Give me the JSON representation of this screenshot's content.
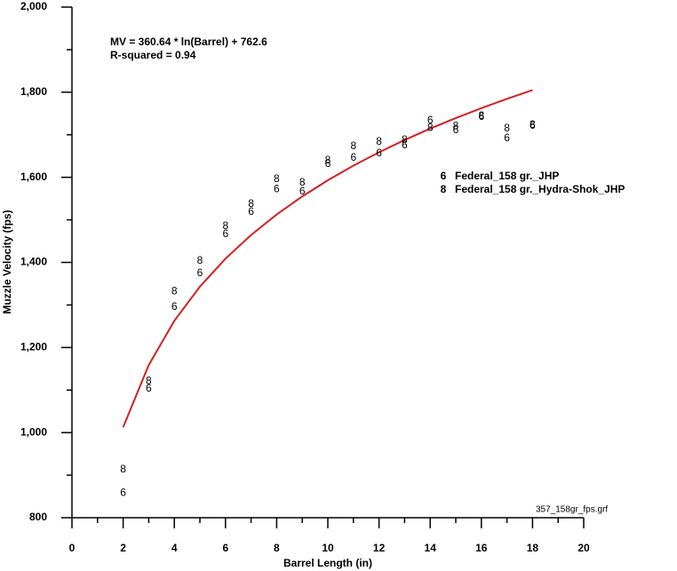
{
  "chart_data": {
    "type": "scatter",
    "xlabel": "Barrel Length (in)",
    "ylabel": "Muzzle Velocity (fps)",
    "annotations": [
      "MV = 360.64 * ln(Barrel) + 762.6",
      "R-squared = 0.94"
    ],
    "footer": "357_158gr_fps.grf",
    "xlim": [
      0,
      20
    ],
    "xticks": [
      0,
      2,
      4,
      6,
      8,
      10,
      12,
      14,
      16,
      18,
      20
    ],
    "x_minor_ticks": [
      1,
      3,
      5,
      7,
      9,
      11,
      13,
      15,
      17,
      19
    ],
    "ylim": [
      800,
      2000
    ],
    "yticks": [
      {
        "value": 800,
        "label": "800"
      },
      {
        "value": 1000,
        "label": "1,000"
      },
      {
        "value": 1200,
        "label": "1,200"
      },
      {
        "value": 1400,
        "label": "1,400"
      },
      {
        "value": 1600,
        "label": "1,600"
      },
      {
        "value": 1800,
        "label": "1,800"
      },
      {
        "value": 2000,
        "label": "2,000"
      }
    ],
    "y_minor_ticks": [
      900,
      1100,
      1300,
      1500,
      1700,
      1900
    ],
    "x": [
      2,
      3,
      4,
      5,
      6,
      7,
      8,
      9,
      10,
      11,
      12,
      13,
      14,
      15,
      16,
      17,
      18
    ],
    "series": [
      {
        "name": "Federal_158 gr._JHP",
        "marker": "6",
        "color": "#000000",
        "values": [
          858,
          1103,
          1295,
          1374,
          1466,
          1518,
          1572,
          1566,
          1631,
          1646,
          1656,
          1675,
          1733,
          1710,
          1742,
          1691,
          1721
        ]
      },
      {
        "name": "Federal_158 gr._Hydra-Shok_JHP",
        "marker": "8",
        "color": "#000000",
        "values": [
          913,
          1121,
          1332,
          1403,
          1485,
          1537,
          1595,
          1587,
          1639,
          1673,
          1683,
          1687,
          1716,
          1720,
          1744,
          1714,
          1723
        ]
      }
    ],
    "fit": {
      "color": "#d62020",
      "x": [
        2,
        3,
        4,
        5,
        6,
        7,
        8,
        9,
        10,
        11,
        12,
        13,
        14,
        15,
        16,
        17,
        18
      ],
      "values": [
        1012.6,
        1158.8,
        1262.6,
        1343.0,
        1408.8,
        1464.4,
        1512.5,
        1555.0,
        1593.0,
        1627.4,
        1658.8,
        1687.6,
        1714.4,
        1739.2,
        1762.5,
        1784.4,
        1805.0
      ]
    }
  }
}
